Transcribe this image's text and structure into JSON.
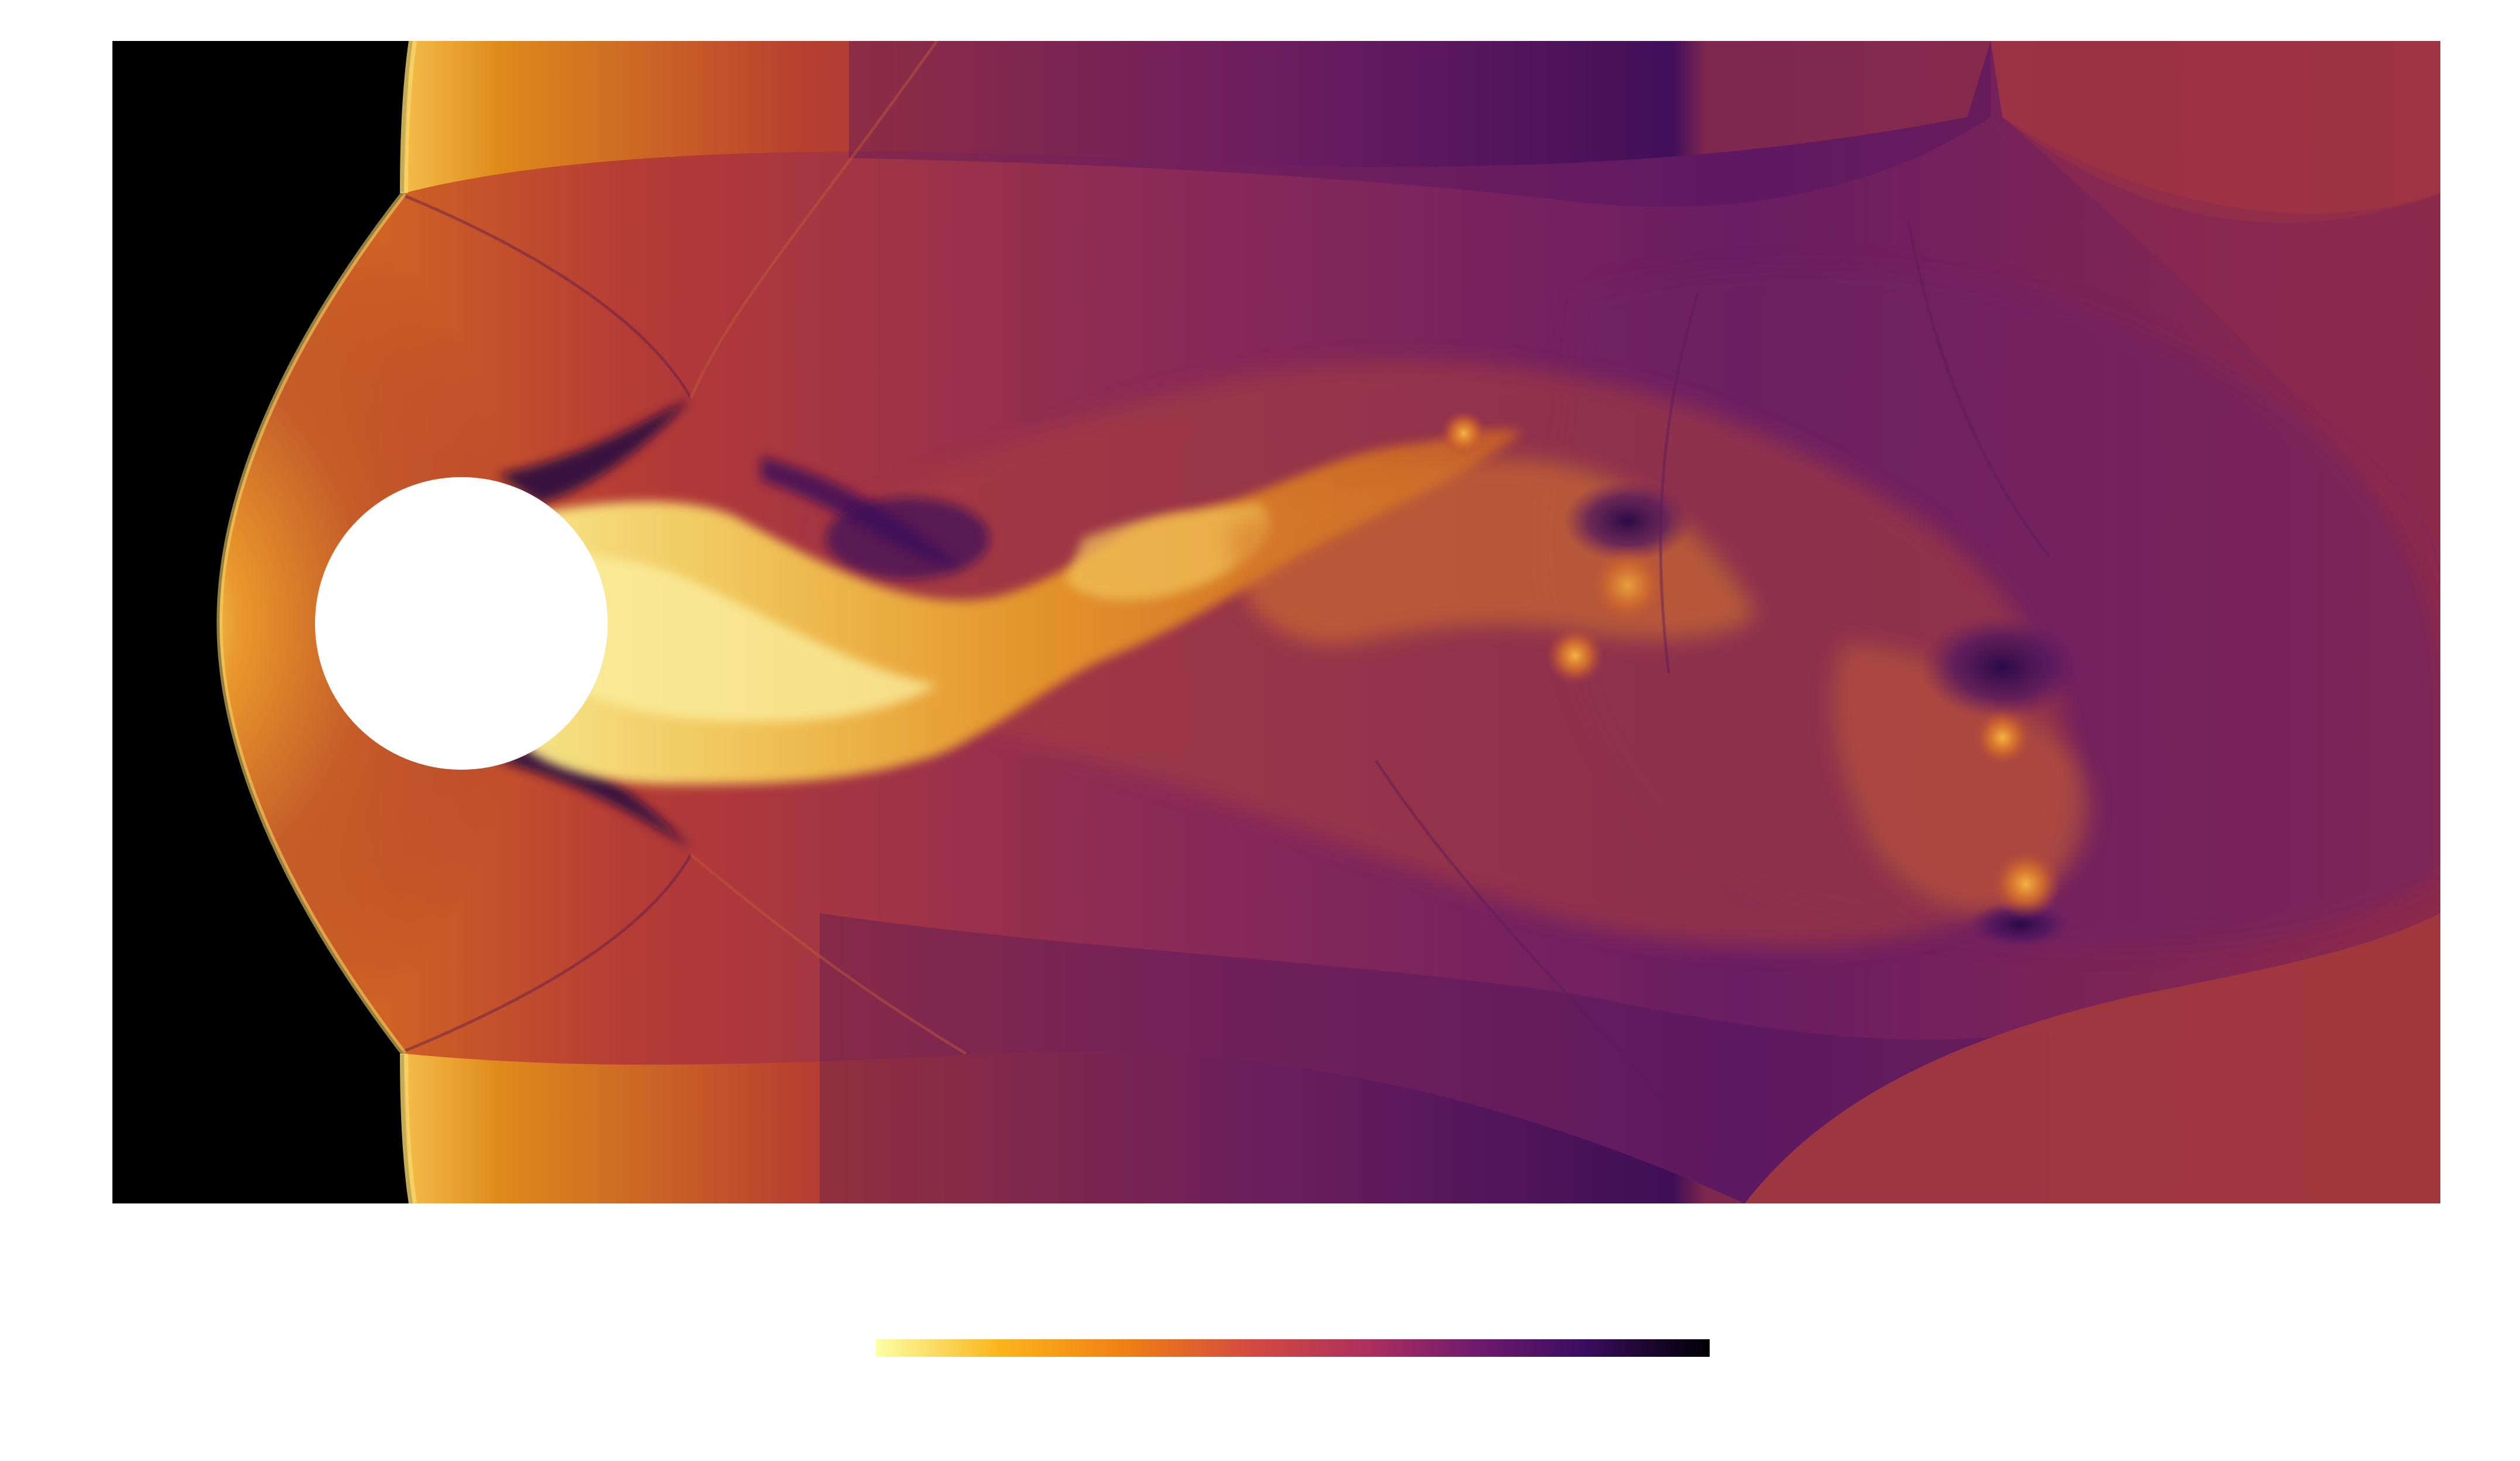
{
  "figure": {
    "colormap": "inferno-reversed",
    "colors": {
      "pre_shock": "#000000",
      "cylinder": "#ffffff",
      "background": "#ffffff"
    },
    "colorbar": {
      "gradient_stops": [
        "#fcffa4",
        "#f98e09",
        "#e4563a",
        "#bc3754",
        "#8a226a",
        "#57106e",
        "#1f0c48",
        "#000004"
      ]
    }
  }
}
